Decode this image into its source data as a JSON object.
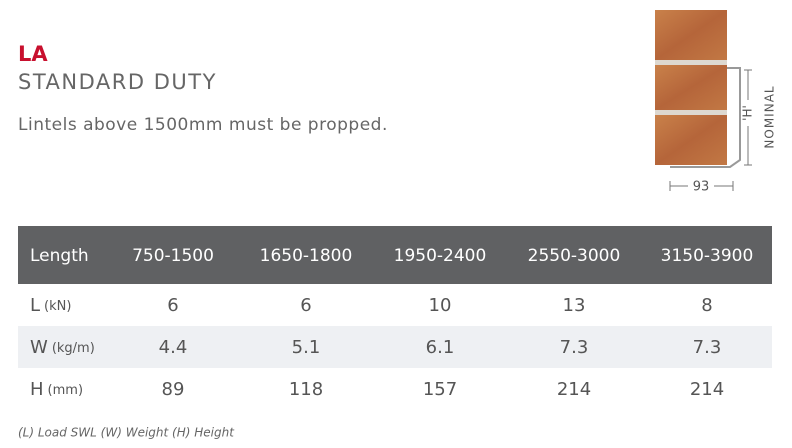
{
  "header": {
    "code": "LA",
    "title": "STANDARD DUTY",
    "note": "Lintels above 1500mm must be propped."
  },
  "diagram": {
    "height_label": "'H'",
    "nominal_label": "NOMINAL",
    "width_label": "93"
  },
  "table": {
    "columns": [
      "Length",
      "750-1500",
      "1650-1800",
      "1950-2400",
      "2550-3000",
      "3150-3900"
    ],
    "rows": [
      {
        "label": "L",
        "unit": "(kN)",
        "values": [
          6,
          6,
          10,
          13,
          8
        ]
      },
      {
        "label": "W",
        "unit": "(kg/m)",
        "values": [
          4.4,
          5.1,
          6.1,
          7.3,
          7.3
        ]
      },
      {
        "label": "H",
        "unit": "(mm)",
        "values": [
          89,
          118,
          157,
          214,
          214
        ]
      }
    ]
  },
  "footnote": "(L) Load SWL (W) Weight (H) Height"
}
